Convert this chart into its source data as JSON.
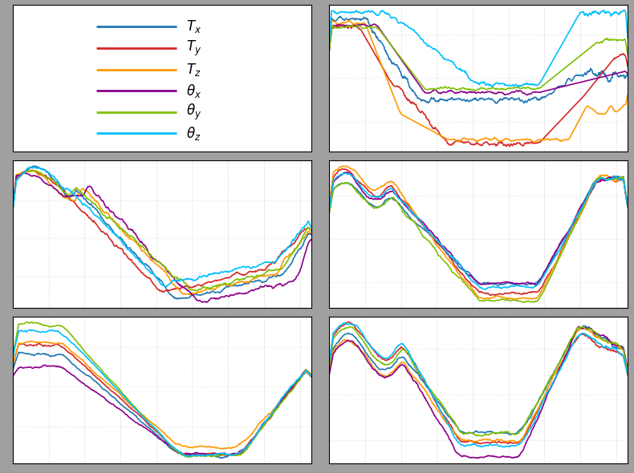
{
  "colors": [
    "#1f77b4",
    "#d62728",
    "#ff9900",
    "#8B008B",
    "#7fbf00",
    "#00bfff"
  ],
  "legend_labels": [
    "$T_x$",
    "$T_y$",
    "$T_z$",
    "$\\theta_x$",
    "$\\theta_y$",
    "$\\theta_z$"
  ],
  "n_points": 500,
  "background": "#ffffff",
  "fig_background": "#a0a0a0",
  "grid_color": "#d0d0d0",
  "grid_style": ":"
}
